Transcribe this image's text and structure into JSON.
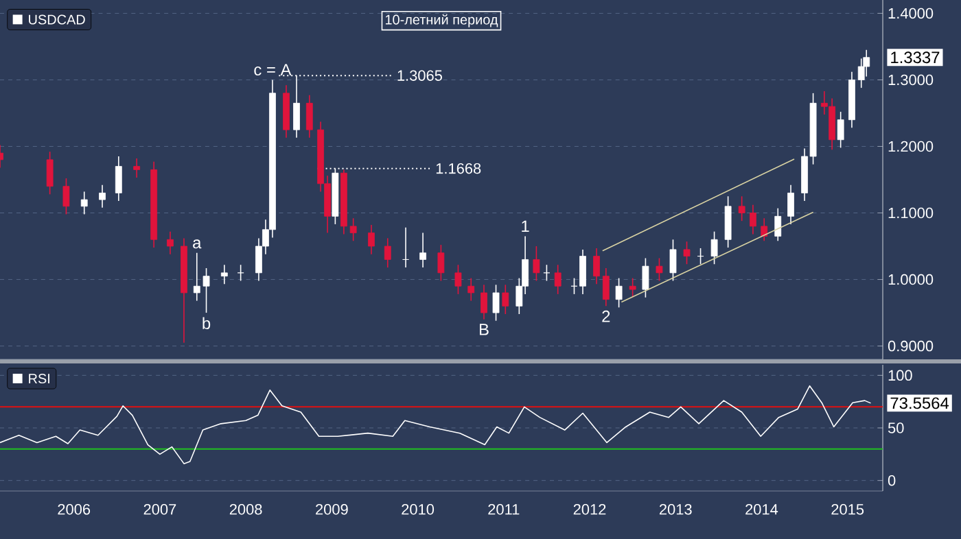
{
  "chart_data": [
    {
      "type": "candlestick",
      "title": "10-летний период",
      "legend": "top left",
      "grid": "y",
      "tick_labels": "y",
      "xlim": [
        2005.64,
        2015.91
      ],
      "ylim": [
        0.88,
        1.42
      ],
      "yticks": [
        {
          "value": 0.9,
          "label": "0.9000"
        },
        {
          "value": 1.0,
          "label": "1.0000"
        },
        {
          "value": 1.1,
          "label": "1.1000"
        },
        {
          "value": 1.2,
          "label": "1.2000"
        },
        {
          "value": 1.3,
          "label": "1.3000"
        },
        {
          "value": 1.4,
          "label": "1.4000"
        }
      ],
      "series": [
        {
          "name": "USDCAD",
          "type": "candlestick",
          "color": "#ffffff",
          "x": [
            2005.64,
            2006.22,
            2006.41,
            2006.62,
            2006.83,
            2007.02,
            2007.23,
            2007.43,
            2007.62,
            2007.78,
            2007.93,
            2008.04,
            2008.25,
            2008.44,
            2008.65,
            2008.73,
            2008.81,
            2008.97,
            2009.09,
            2009.24,
            2009.37,
            2009.45,
            2009.54,
            2009.64,
            2009.75,
            2009.96,
            2010.15,
            2010.36,
            2010.56,
            2010.77,
            2010.97,
            2011.12,
            2011.27,
            2011.41,
            2011.52,
            2011.68,
            2011.75,
            2011.88,
            2012.0,
            2012.13,
            2012.32,
            2012.42,
            2012.58,
            2012.69,
            2012.84,
            2013.0,
            2013.15,
            2013.31,
            2013.47,
            2013.63,
            2013.79,
            2013.95,
            2014.11,
            2014.27,
            2014.4,
            2014.53,
            2014.69,
            2014.84,
            2015.0,
            2015.1,
            2015.23,
            2015.32,
            2015.42,
            2015.55,
            2015.66,
            2015.72
          ],
          "ohlc": [
            [
              1.19,
              1.202,
              1.168,
              1.18
            ],
            [
              1.18,
              1.192,
              1.128,
              1.14
            ],
            [
              1.14,
              1.152,
              1.098,
              1.11
            ],
            [
              1.11,
              1.132,
              1.098,
              1.12
            ],
            [
              1.12,
              1.142,
              1.108,
              1.13
            ],
            [
              1.13,
              1.185,
              1.118,
              1.17
            ],
            [
              1.17,
              1.182,
              1.153,
              1.165
            ],
            [
              1.165,
              1.177,
              1.048,
              1.06
            ],
            [
              1.06,
              1.072,
              1.038,
              1.05
            ],
            [
              1.05,
              1.062,
              0.905,
              0.98
            ],
            [
              0.98,
              1.04,
              0.968,
              0.99
            ],
            [
              0.99,
              1.017,
              0.95,
              1.005
            ],
            [
              1.005,
              1.022,
              0.993,
              1.01
            ],
            [
              1.01,
              1.022,
              0.998,
              1.01
            ],
            [
              1.01,
              1.062,
              0.998,
              1.05
            ],
            [
              1.05,
              1.09,
              1.038,
              1.075
            ],
            [
              1.075,
              1.3,
              1.063,
              1.28
            ],
            [
              1.28,
              1.292,
              1.213,
              1.225
            ],
            [
              1.225,
              1.3065,
              1.213,
              1.265
            ],
            [
              1.265,
              1.277,
              1.213,
              1.225
            ],
            [
              1.225,
              1.237,
              1.132,
              1.144
            ],
            [
              1.144,
              1.156,
              1.07,
              1.095
            ],
            [
              1.095,
              1.1668,
              1.083,
              1.16
            ],
            [
              1.16,
              1.165,
              1.068,
              1.08
            ],
            [
              1.08,
              1.092,
              1.058,
              1.07
            ],
            [
              1.07,
              1.082,
              1.038,
              1.05
            ],
            [
              1.05,
              1.062,
              1.018,
              1.03
            ],
            [
              1.03,
              1.078,
              1.018,
              1.03
            ],
            [
              1.03,
              1.07,
              1.018,
              1.04
            ],
            [
              1.04,
              1.052,
              0.998,
              1.01
            ],
            [
              1.01,
              1.022,
              0.978,
              0.99
            ],
            [
              0.99,
              1.002,
              0.968,
              0.98
            ],
            [
              0.98,
              0.992,
              0.94,
              0.95
            ],
            [
              0.95,
              0.992,
              0.938,
              0.98
            ],
            [
              0.98,
              0.992,
              0.948,
              0.96
            ],
            [
              0.96,
              1.002,
              0.948,
              0.99
            ],
            [
              0.99,
              1.065,
              0.978,
              1.03
            ],
            [
              1.03,
              1.05,
              0.998,
              1.01
            ],
            [
              1.01,
              1.022,
              0.998,
              1.01
            ],
            [
              1.01,
              1.022,
              0.978,
              0.99
            ],
            [
              0.99,
              1.002,
              0.978,
              0.99
            ],
            [
              0.99,
              1.045,
              0.978,
              1.035
            ],
            [
              1.035,
              1.047,
              0.993,
              1.005
            ],
            [
              1.005,
              1.017,
              0.96,
              0.97
            ],
            [
              0.97,
              1.002,
              0.958,
              0.99
            ],
            [
              0.99,
              1.002,
              0.973,
              0.985
            ],
            [
              0.985,
              1.032,
              0.973,
              1.02
            ],
            [
              1.02,
              1.032,
              0.998,
              1.01
            ],
            [
              1.01,
              1.06,
              0.998,
              1.045
            ],
            [
              1.045,
              1.057,
              1.023,
              1.035
            ],
            [
              1.035,
              1.047,
              1.023,
              1.035
            ],
            [
              1.035,
              1.072,
              1.023,
              1.06
            ],
            [
              1.06,
              1.125,
              1.048,
              1.11
            ],
            [
              1.11,
              1.125,
              1.088,
              1.1
            ],
            [
              1.1,
              1.112,
              1.068,
              1.08
            ],
            [
              1.08,
              1.092,
              1.058,
              1.065
            ],
            [
              1.065,
              1.107,
              1.058,
              1.095
            ],
            [
              1.095,
              1.142,
              1.083,
              1.13
            ],
            [
              1.13,
              1.197,
              1.118,
              1.185
            ],
            [
              1.185,
              1.28,
              1.173,
              1.265
            ],
            [
              1.265,
              1.283,
              1.248,
              1.26
            ],
            [
              1.26,
              1.272,
              1.195,
              1.21
            ],
            [
              1.21,
              1.252,
              1.198,
              1.24
            ],
            [
              1.24,
              1.312,
              1.228,
              1.3
            ],
            [
              1.3,
              1.332,
              1.288,
              1.32
            ],
            [
              1.32,
              1.345,
              1.305,
              1.3337
            ]
          ],
          "colors": [
            "#e0143c",
            "#e0143c",
            "#e0143c",
            "#ffffff",
            "#ffffff",
            "#ffffff",
            "#e0143c",
            "#e0143c",
            "#e0143c",
            "#e0143c",
            "#ffffff",
            "#ffffff",
            "#ffffff",
            "#ffffff",
            "#ffffff",
            "#ffffff",
            "#ffffff",
            "#e0143c",
            "#ffffff",
            "#e0143c",
            "#e0143c",
            "#e0143c",
            "#ffffff",
            "#e0143c",
            "#e0143c",
            "#e0143c",
            "#e0143c",
            "#ffffff",
            "#ffffff",
            "#e0143c",
            "#e0143c",
            "#e0143c",
            "#e0143c",
            "#ffffff",
            "#e0143c",
            "#ffffff",
            "#ffffff",
            "#e0143c",
            "#ffffff",
            "#e0143c",
            "#ffffff",
            "#ffffff",
            "#e0143c",
            "#e0143c",
            "#ffffff",
            "#e0143c",
            "#ffffff",
            "#e0143c",
            "#ffffff",
            "#e0143c",
            "#ffffff",
            "#ffffff",
            "#ffffff",
            "#e0143c",
            "#e0143c",
            "#e0143c",
            "#ffffff",
            "#ffffff",
            "#ffffff",
            "#ffffff",
            "#e0143c",
            "#e0143c",
            "#ffffff",
            "#ffffff",
            "#ffffff",
            "#ffffff"
          ]
        },
        {
          "type": "line",
          "color": "#d9d3a3",
          "x": [
            2012.65,
            2014.88
          ],
          "values": [
            1.043,
            1.181
          ]
        },
        {
          "type": "line",
          "color": "#d9d3a3",
          "x": [
            2012.87,
            2015.1
          ],
          "values": [
            0.966,
            1.101
          ]
        }
      ],
      "ref_lines": [
        {
          "axis": "y",
          "value": 1.3065,
          "label": "1.3065",
          "color": "#ffffff",
          "line_style": "dotted"
        },
        {
          "axis": "y",
          "value": 1.1668,
          "label": "1.1668",
          "color": "#ffffff",
          "line_style": "dotted"
        }
      ],
      "annotations": [
        {
          "text": "c = A",
          "x": 2008.81,
          "y": 1.3
        },
        {
          "text": "a",
          "x": 2007.93,
          "y": 1.04
        },
        {
          "text": "b",
          "x": 2008.04,
          "y": 0.95
        },
        {
          "text": "B",
          "x": 2011.27,
          "y": 0.94
        },
        {
          "text": "1",
          "x": 2011.75,
          "y": 1.065
        },
        {
          "text": "2",
          "x": 2012.69,
          "y": 0.96
        },
        {
          "text": "1.3337",
          "x": 2015.72,
          "y": 1.3337
        }
      ]
    },
    {
      "type": "line",
      "legend": "top left",
      "grid": "y",
      "xlim": [
        2005.64,
        2015.91
      ],
      "ylim": [
        -10,
        110
      ],
      "xticks": [
        {
          "value": 2006.5,
          "label": "2006"
        },
        {
          "value": 2007.5,
          "label": "2007"
        },
        {
          "value": 2008.5,
          "label": "2008"
        },
        {
          "value": 2009.5,
          "label": "2009"
        },
        {
          "value": 2010.5,
          "label": "2010"
        },
        {
          "value": 2011.5,
          "label": "2011"
        },
        {
          "value": 2012.5,
          "label": "2012"
        },
        {
          "value": 2013.5,
          "label": "2013"
        },
        {
          "value": 2014.5,
          "label": "2014"
        },
        {
          "value": 2015.5,
          "label": "2015"
        }
      ],
      "yticks": [
        0,
        50,
        100
      ],
      "series": [
        {
          "name": "RSI",
          "color": "#ffffff",
          "x": [
            2005.64,
            2005.86,
            2006.07,
            2006.29,
            2006.43,
            2006.57,
            2006.78,
            2007.0,
            2007.07,
            2007.18,
            2007.36,
            2007.5,
            2007.64,
            2007.78,
            2007.85,
            2008.0,
            2008.21,
            2008.5,
            2008.64,
            2008.78,
            2008.92,
            2009.14,
            2009.35,
            2009.57,
            2009.92,
            2010.21,
            2010.35,
            2010.64,
            2010.99,
            2011.28,
            2011.42,
            2011.56,
            2011.74,
            2011.92,
            2012.21,
            2012.42,
            2012.7,
            2012.92,
            2013.2,
            2013.42,
            2013.56,
            2013.77,
            2014.06,
            2014.27,
            2014.49,
            2014.7,
            2014.92,
            2015.06,
            2015.2,
            2015.34,
            2015.56,
            2015.7,
            2015.77
          ],
          "values": [
            36,
            43,
            36,
            42,
            35,
            48,
            43,
            61,
            71,
            62,
            34,
            25,
            32,
            16,
            18,
            48,
            54,
            57,
            62,
            86,
            71,
            65,
            42,
            42,
            45,
            42,
            57,
            51,
            45,
            34,
            51,
            45,
            70,
            60,
            48,
            64,
            36,
            51,
            65,
            60,
            70,
            54,
            76,
            65,
            42,
            60,
            68,
            90,
            74,
            51,
            74,
            76,
            73.5564
          ]
        }
      ],
      "ref_lines": [
        {
          "axis": "y",
          "value": 70,
          "color": "#e01010"
        },
        {
          "axis": "y",
          "value": 30,
          "color": "#20c020"
        }
      ],
      "annotations": [
        {
          "text": "73.5564",
          "x": 2015.77,
          "y": 73.5564
        }
      ]
    }
  ]
}
